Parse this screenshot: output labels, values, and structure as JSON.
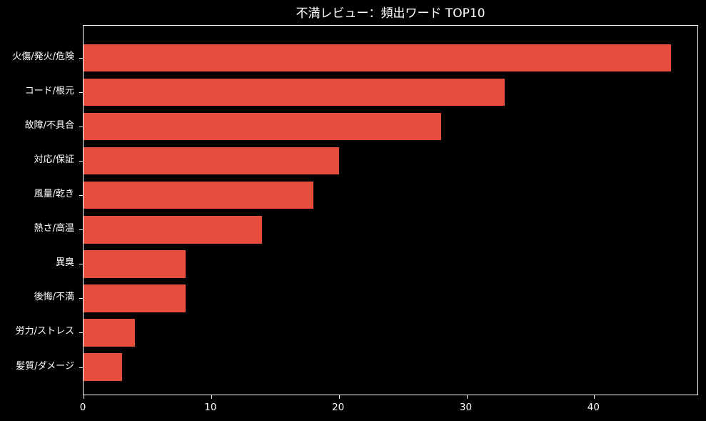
{
  "title": "不満レビュー：頻出ワード TOP10",
  "colors": {
    "background": "#000000",
    "bar": "#e74c3c",
    "text": "#ffffff",
    "spine": "#ffffff"
  },
  "chart_data": {
    "type": "bar",
    "orientation": "horizontal",
    "title": "不満レビュー：頻出ワード TOP10",
    "xlabel": "",
    "ylabel": "",
    "categories": [
      "火傷/発火/危険",
      "コード/根元",
      "故障/不具合",
      "対応/保証",
      "風量/乾き",
      "熱さ/高温",
      "異臭",
      "後悔/不満",
      "労力/ストレス",
      "髪質/ダメージ"
    ],
    "values": [
      46,
      33,
      28,
      20,
      18,
      14,
      8,
      8,
      4,
      3
    ],
    "xticks": [
      0,
      10,
      20,
      30,
      40
    ],
    "xlim": [
      0,
      48.2
    ],
    "grid": false,
    "legend": false
  }
}
